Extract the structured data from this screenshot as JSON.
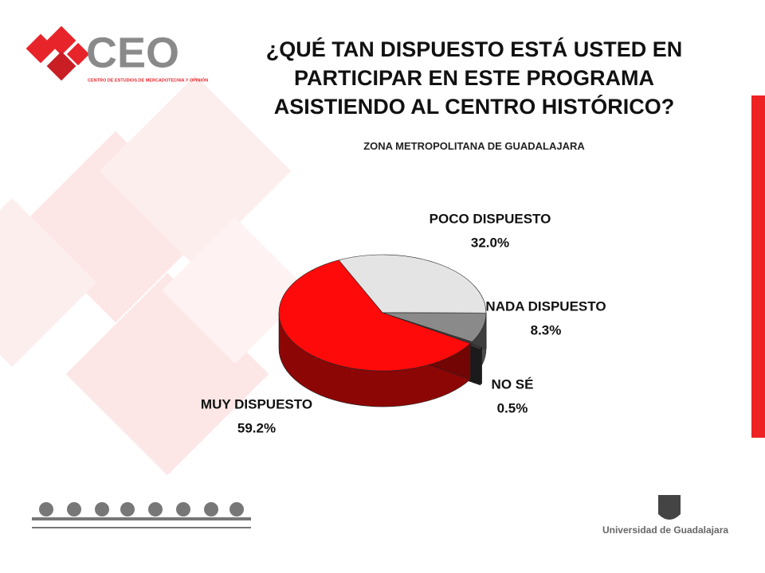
{
  "header": {
    "logo": "CEO",
    "logo_subtitle": "CENTRO DE ESTUDIOS DE MERCADOTECNIA Y OPINIÓN"
  },
  "footer": {
    "university": "Universidad de Guadalajara"
  },
  "chart_data": {
    "type": "pie",
    "title": "¿QUÉ TAN DISPUESTO ESTÁ USTED EN PARTICIPAR EN ESTE PROGRAMA ASISTIENDO AL CENTRO HISTÓRICO?",
    "subtitle": "ZONA METROPOLITANA DE GUADALAJARA",
    "categories": [
      "POCO DISPUESTO",
      "NADA DISPUESTO",
      "NO SÉ",
      "MUY DISPUESTO"
    ],
    "values": [
      32.0,
      8.3,
      0.5,
      59.2
    ],
    "value_labels": [
      "32.0%",
      "8.3%",
      "0.5%",
      "59.2%"
    ],
    "colors": [
      "#e4e4e4",
      "#8a8a8a",
      "#3a3a3a",
      "#ff0a0a"
    ]
  }
}
